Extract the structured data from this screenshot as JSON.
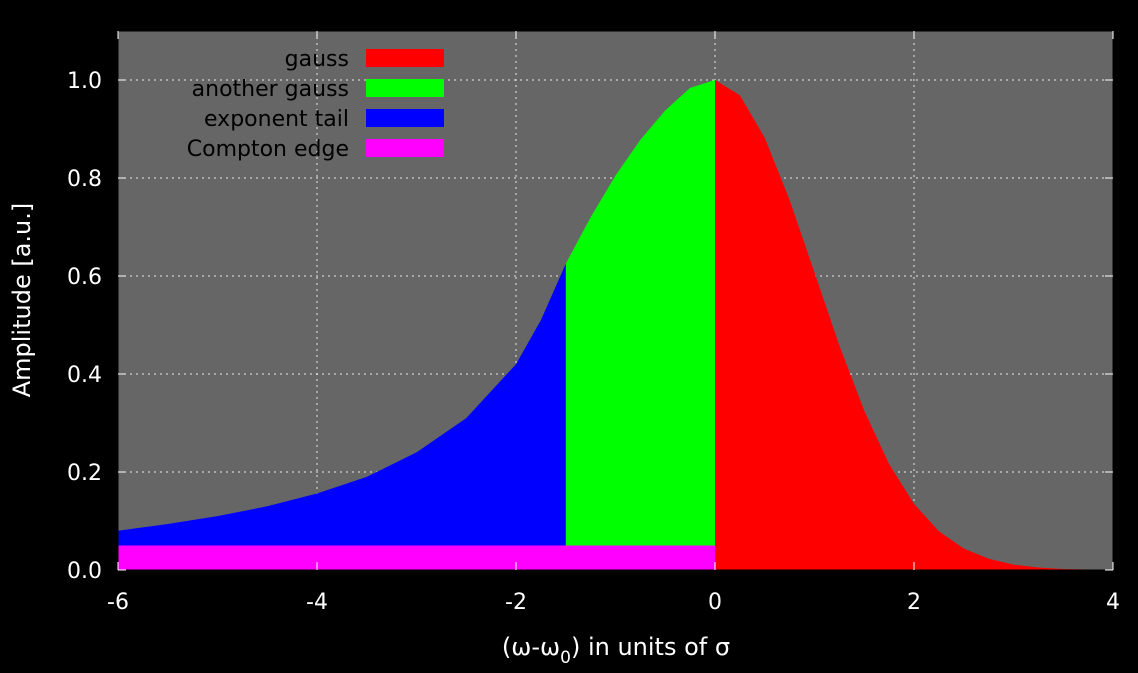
{
  "chart_data": {
    "type": "area",
    "xlabel_main": "(ω-ω",
    "xlabel_sub": "0",
    "xlabel_rest": ") in units of σ",
    "ylabel": "Amplitude [a.u.]",
    "xlim": [
      -6,
      4
    ],
    "ylim": [
      0,
      1.1
    ],
    "x_ticks": [
      "-6",
      "-4",
      "-2",
      "0",
      "2",
      "4"
    ],
    "y_ticks": [
      "0.0",
      "0.2",
      "0.4",
      "0.6",
      "0.8",
      "1.0"
    ],
    "grid": true,
    "legend_position": "top-left",
    "series": [
      {
        "name": "gauss",
        "color": "#ff0000",
        "x": [
          0,
          0.25,
          0.5,
          0.75,
          1.0,
          1.25,
          1.5,
          1.75,
          2.0,
          2.25,
          2.5,
          2.75,
          3.0,
          3.25,
          3.5,
          3.75,
          4.0
        ],
        "y": [
          1.0,
          0.969,
          0.882,
          0.755,
          0.607,
          0.458,
          0.325,
          0.216,
          0.135,
          0.079,
          0.044,
          0.023,
          0.011,
          0.005,
          0.002,
          0.001,
          0.0
        ]
      },
      {
        "name": "another gauss",
        "color": "#00ff00",
        "x": [
          -1.5,
          -1.25,
          -1.0,
          -0.75,
          -0.5,
          -0.25,
          0
        ],
        "y": [
          0.625,
          0.72,
          0.805,
          0.878,
          0.938,
          0.984,
          1.0
        ]
      },
      {
        "name": "exponent tail",
        "color": "#0000ff",
        "x": [
          -6,
          -5.5,
          -5,
          -4.5,
          -4,
          -3.5,
          -3,
          -2.5,
          -2,
          -1.75,
          -1.5
        ],
        "y": [
          0.08,
          0.094,
          0.11,
          0.13,
          0.156,
          0.19,
          0.24,
          0.31,
          0.42,
          0.51,
          0.625
        ]
      },
      {
        "name": "Compton edge",
        "color": "#ff00ff",
        "x": [
          -6,
          0
        ],
        "y": [
          0.05,
          0.05
        ]
      }
    ]
  }
}
